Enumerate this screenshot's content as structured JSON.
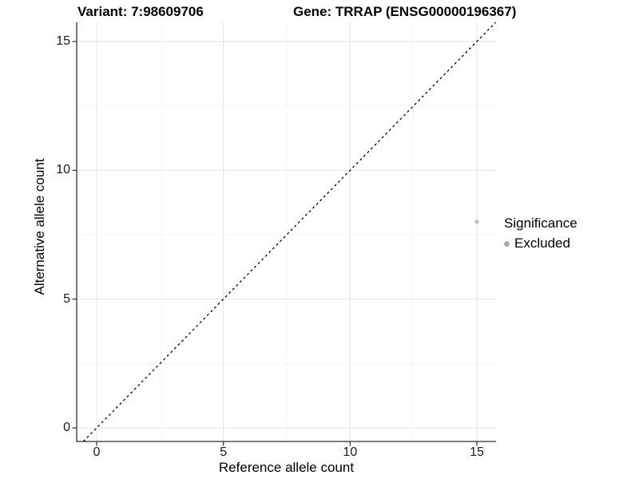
{
  "chart_data": {
    "type": "scatter",
    "title_left": "Variant: 7:98609706",
    "title_right": "Gene: TRRAP (ENSG00000196367)",
    "xlabel": "Reference allele count",
    "ylabel": "Alternative allele count",
    "xlim": [
      -0.75,
      15.75
    ],
    "ylim": [
      -0.75,
      15.75
    ],
    "xticks": [
      0,
      5,
      10,
      15
    ],
    "yticks": [
      0,
      5,
      10,
      15
    ],
    "minor_gridlines": [
      2.5,
      7.5,
      12.5
    ],
    "grid": "major and minor gridlines, light gray on white panel",
    "reference_line": {
      "type": "identity y = x",
      "style": "dashed",
      "color": "#000000"
    },
    "series": [
      {
        "name": "Excluded",
        "color": "#bdbdbd",
        "marker": "circle",
        "points": [
          [
            15,
            8
          ]
        ]
      }
    ],
    "legend": {
      "title": "Significance",
      "position": "right",
      "items": [
        {
          "label": "Excluded",
          "color": "#a8a8a8",
          "marker": "circle"
        }
      ]
    },
    "colors": {
      "grid_major": "#e4e4e4",
      "grid_minor": "#f2f2f2",
      "axis": "#2e2e2e",
      "tick_text": "#1a1a1a",
      "title_text": "#000000"
    }
  }
}
